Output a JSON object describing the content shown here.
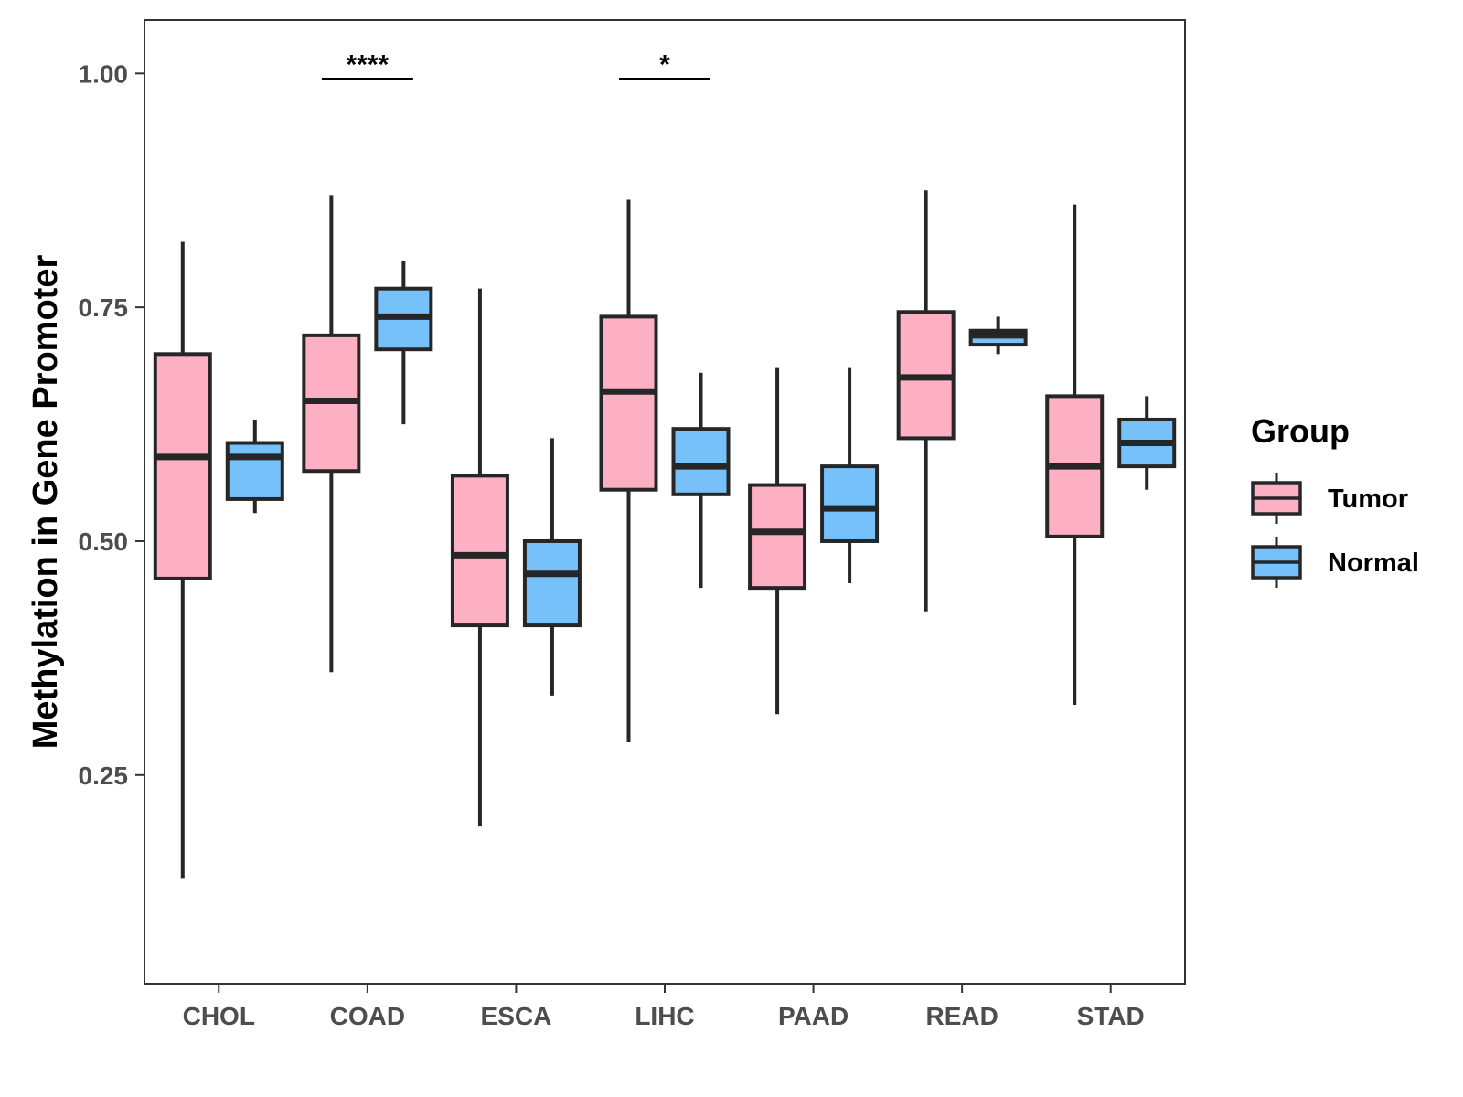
{
  "chart_data": {
    "type": "boxplot",
    "title": "",
    "xlabel": "",
    "ylabel": "Methylation in Gene Promoter",
    "ylim": [
      0.027,
      1.057
    ],
    "yticks": [
      0.25,
      0.5,
      0.75,
      1.0
    ],
    "ytick_labels": [
      "0.25",
      "0.50",
      "0.75",
      "1.00"
    ],
    "grid": false,
    "categories": [
      "CHOL",
      "COAD",
      "ESCA",
      "LIHC",
      "PAAD",
      "READ",
      "STAD"
    ],
    "series": [
      {
        "name": "Tumor",
        "color": "#FDB0C4",
        "boxes": [
          {
            "whisker_low": 0.14,
            "q1": 0.46,
            "median": 0.59,
            "q3": 0.7,
            "whisker_high": 0.82
          },
          {
            "whisker_low": 0.36,
            "q1": 0.575,
            "median": 0.65,
            "q3": 0.72,
            "whisker_high": 0.87
          },
          {
            "whisker_low": 0.195,
            "q1": 0.41,
            "median": 0.485,
            "q3": 0.57,
            "whisker_high": 0.77
          },
          {
            "whisker_low": 0.285,
            "q1": 0.555,
            "median": 0.66,
            "q3": 0.74,
            "whisker_high": 0.865
          },
          {
            "whisker_low": 0.315,
            "q1": 0.45,
            "median": 0.51,
            "q3": 0.56,
            "whisker_high": 0.685
          },
          {
            "whisker_low": 0.425,
            "q1": 0.61,
            "median": 0.675,
            "q3": 0.745,
            "whisker_high": 0.875
          },
          {
            "whisker_low": 0.325,
            "q1": 0.505,
            "median": 0.58,
            "q3": 0.655,
            "whisker_high": 0.86
          }
        ]
      },
      {
        "name": "Normal",
        "color": "#76C1F9",
        "boxes": [
          {
            "whisker_low": 0.53,
            "q1": 0.545,
            "median": 0.59,
            "q3": 0.605,
            "whisker_high": 0.63
          },
          {
            "whisker_low": 0.625,
            "q1": 0.705,
            "median": 0.74,
            "q3": 0.77,
            "whisker_high": 0.8
          },
          {
            "whisker_low": 0.335,
            "q1": 0.41,
            "median": 0.465,
            "q3": 0.5,
            "whisker_high": 0.61
          },
          {
            "whisker_low": 0.45,
            "q1": 0.55,
            "median": 0.58,
            "q3": 0.62,
            "whisker_high": 0.68
          },
          {
            "whisker_low": 0.455,
            "q1": 0.5,
            "median": 0.535,
            "q3": 0.58,
            "whisker_high": 0.685
          },
          {
            "whisker_low": 0.7,
            "q1": 0.71,
            "median": 0.72,
            "q3": 0.725,
            "whisker_high": 0.74
          },
          {
            "whisker_low": 0.555,
            "q1": 0.58,
            "median": 0.605,
            "q3": 0.63,
            "whisker_high": 0.655
          }
        ]
      }
    ],
    "annotations": [
      {
        "category": "COAD",
        "label": "****",
        "y": 0.99
      },
      {
        "category": "LIHC",
        "label": "*",
        "y": 0.99
      }
    ],
    "legend": {
      "title": "Group",
      "position": "right",
      "entries": [
        "Tumor",
        "Normal"
      ]
    }
  }
}
